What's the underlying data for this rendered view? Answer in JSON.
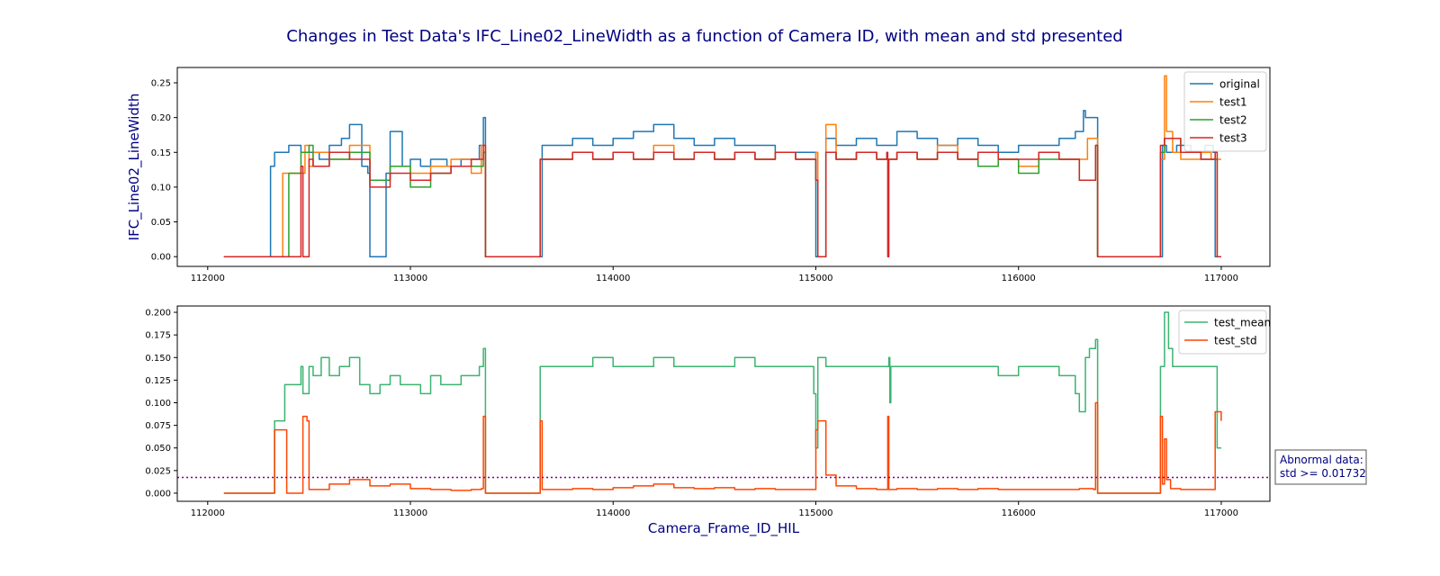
{
  "chart_data": [
    {
      "type": "line",
      "title": "Changes in Test Data's IFC_Line02_LineWidth as a function of Camera ID, with mean and std presented",
      "ylabel": "IFC_Line02_LineWidth",
      "xlabel": "",
      "xlim": [
        111850,
        117240
      ],
      "ylim": [
        -0.014,
        0.272
      ],
      "xticks": [
        112000,
        113000,
        114000,
        115000,
        116000,
        117000
      ],
      "xtick_labels": [
        "112000",
        "113000",
        "114000",
        "115000",
        "116000",
        "117000"
      ],
      "yticks": [
        0.0,
        0.05,
        0.1,
        0.15,
        0.2,
        0.25
      ],
      "ytick_labels": [
        "0.00",
        "0.05",
        "0.10",
        "0.15",
        "0.20",
        "0.25"
      ],
      "legend_position": "top-right",
      "series": [
        {
          "name": "original",
          "color": "#1f77b4",
          "x": [
            112080,
            112300,
            112310,
            112330,
            112400,
            112460,
            112550,
            112600,
            112660,
            112700,
            112760,
            112790,
            112800,
            112830,
            112880,
            112900,
            112960,
            113000,
            113050,
            113100,
            113180,
            113250,
            113300,
            113340,
            113360,
            113370,
            113630,
            113650,
            113700,
            113800,
            113900,
            114000,
            114100,
            114200,
            114300,
            114400,
            114500,
            114600,
            114700,
            114800,
            114900,
            114990,
            115000,
            115050,
            115100,
            115200,
            115300,
            115400,
            115500,
            115600,
            115700,
            115800,
            115900,
            116000,
            116100,
            116200,
            116280,
            116320,
            116330,
            116380,
            116390,
            116700,
            116710,
            116730,
            116780,
            116850,
            116920,
            116960,
            116970,
            116990,
            117000
          ],
          "y": [
            0,
            0,
            0.13,
            0.15,
            0.16,
            0.15,
            0.14,
            0.16,
            0.17,
            0.19,
            0.13,
            0.12,
            0,
            0,
            0.12,
            0.18,
            0.13,
            0.14,
            0.13,
            0.14,
            0.13,
            0.14,
            0.14,
            0.16,
            0.2,
            0,
            0,
            0.16,
            0.16,
            0.17,
            0.16,
            0.17,
            0.18,
            0.19,
            0.17,
            0.16,
            0.17,
            0.16,
            0.16,
            0.15,
            0.15,
            0.15,
            0,
            0.17,
            0.16,
            0.17,
            0.16,
            0.18,
            0.17,
            0.16,
            0.17,
            0.16,
            0.15,
            0.16,
            0.16,
            0.17,
            0.18,
            0.21,
            0.2,
            0.2,
            0,
            0,
            0.16,
            0.15,
            0.16,
            0.15,
            0.16,
            0.15,
            0,
            0,
            0
          ]
        },
        {
          "name": "test1",
          "color": "#ff7f0e",
          "x": [
            112080,
            112360,
            112370,
            112440,
            112480,
            112500,
            112520,
            112600,
            112700,
            112800,
            112900,
            113000,
            113100,
            113200,
            113300,
            113350,
            113370,
            113630,
            113640,
            113700,
            113800,
            113900,
            114000,
            114100,
            114200,
            114300,
            114400,
            114500,
            114600,
            114700,
            114800,
            114900,
            115000,
            115010,
            115050,
            115100,
            115200,
            115300,
            115400,
            115500,
            115600,
            115700,
            115800,
            115900,
            116000,
            116100,
            116200,
            116300,
            116340,
            116380,
            116390,
            116690,
            116700,
            116720,
            116730,
            116760,
            116800,
            116900,
            116950,
            116990,
            117000
          ],
          "y": [
            0,
            0,
            0.12,
            0.12,
            0.16,
            0.13,
            0.15,
            0.14,
            0.16,
            0.11,
            0.13,
            0.12,
            0.13,
            0.14,
            0.12,
            0.16,
            0,
            0,
            0.14,
            0.14,
            0.15,
            0.14,
            0.15,
            0.14,
            0.16,
            0.14,
            0.15,
            0.14,
            0.15,
            0.14,
            0.15,
            0.14,
            0.15,
            0,
            0.19,
            0.14,
            0.15,
            0.14,
            0.15,
            0.14,
            0.16,
            0.14,
            0.15,
            0.14,
            0.13,
            0.15,
            0.14,
            0.14,
            0.17,
            0.17,
            0,
            0,
            0.14,
            0.26,
            0.18,
            0.15,
            0.14,
            0.15,
            0.14,
            0.14,
            0.14
          ]
        },
        {
          "name": "test2",
          "color": "#2ca02c",
          "x": [
            112080,
            112330,
            112400,
            112460,
            112500,
            112520,
            112600,
            112700,
            112800,
            112900,
            113000,
            113100,
            113200,
            113300,
            113360,
            113370,
            113630,
            113640,
            113700,
            113800,
            113900,
            114000,
            114100,
            114200,
            114300,
            114400,
            114500,
            114600,
            114700,
            114800,
            114900,
            115000,
            115010,
            115050,
            115100,
            115200,
            115300,
            115400,
            115500,
            115600,
            115700,
            115800,
            115900,
            116000,
            116100,
            116200,
            116300,
            116380,
            116390,
            116690,
            116700,
            116720,
            116800,
            116900,
            116970,
            116980,
            117000
          ],
          "y": [
            0,
            0,
            0.12,
            0.15,
            0.16,
            0.13,
            0.14,
            0.15,
            0.11,
            0.13,
            0.1,
            0.12,
            0.13,
            0.13,
            0.15,
            0,
            0,
            0.14,
            0.14,
            0.15,
            0.14,
            0.15,
            0.14,
            0.15,
            0.14,
            0.15,
            0.14,
            0.15,
            0.14,
            0.15,
            0.14,
            0.11,
            0,
            0.15,
            0.14,
            0.15,
            0.14,
            0.15,
            0.14,
            0.15,
            0.14,
            0.13,
            0.14,
            0.12,
            0.14,
            0.14,
            0.11,
            0.16,
            0,
            0,
            0.15,
            0.17,
            0.15,
            0.14,
            0.14,
            0,
            0
          ]
        },
        {
          "name": "test3",
          "color": "#d62728",
          "x": [
            112080,
            112330,
            112460,
            112470,
            112500,
            112520,
            112600,
            112700,
            112800,
            112900,
            113000,
            113100,
            113200,
            113300,
            113360,
            113370,
            113630,
            113640,
            113700,
            113800,
            113900,
            114000,
            114100,
            114200,
            114300,
            114400,
            114500,
            114600,
            114700,
            114800,
            114900,
            115000,
            115010,
            115050,
            115100,
            115200,
            115300,
            115350,
            115355,
            115360,
            115400,
            115500,
            115600,
            115700,
            115800,
            115900,
            116000,
            116100,
            116200,
            116300,
            116380,
            116390,
            116690,
            116700,
            116720,
            116800,
            116900,
            116970,
            116980,
            117000
          ],
          "y": [
            0,
            0,
            0.13,
            0,
            0.14,
            0.13,
            0.15,
            0.14,
            0.1,
            0.12,
            0.11,
            0.12,
            0.13,
            0.14,
            0.16,
            0,
            0,
            0.14,
            0.14,
            0.15,
            0.14,
            0.15,
            0.14,
            0.15,
            0.14,
            0.15,
            0.14,
            0.15,
            0.14,
            0.15,
            0.14,
            0.11,
            0,
            0.15,
            0.14,
            0.15,
            0.14,
            0.15,
            0,
            0.14,
            0.15,
            0.14,
            0.15,
            0.14,
            0.15,
            0.14,
            0.14,
            0.15,
            0.14,
            0.11,
            0.16,
            0,
            0,
            0.16,
            0.17,
            0.15,
            0.14,
            0.15,
            0,
            0
          ]
        }
      ]
    },
    {
      "type": "line",
      "title": "",
      "xlabel": "Camera_Frame_ID_HIL",
      "ylabel": "",
      "xlim": [
        111850,
        117240
      ],
      "ylim": [
        -0.009,
        0.207
      ],
      "xticks": [
        112000,
        113000,
        114000,
        115000,
        116000,
        117000
      ],
      "xtick_labels": [
        "112000",
        "113000",
        "114000",
        "115000",
        "116000",
        "117000"
      ],
      "yticks": [
        0.0,
        0.025,
        0.05,
        0.075,
        0.1,
        0.125,
        0.15,
        0.175,
        0.2
      ],
      "ytick_labels": [
        "0.000",
        "0.025",
        "0.050",
        "0.075",
        "0.100",
        "0.125",
        "0.150",
        "0.175",
        "0.200"
      ],
      "legend_position": "top-right",
      "threshold": {
        "value": 0.01732,
        "color": "#800080",
        "label": "Abnormal data:\nstd >= 0.01732"
      },
      "series": [
        {
          "name": "test_mean",
          "color": "#3cb371",
          "x": [
            112080,
            112320,
            112330,
            112370,
            112380,
            112440,
            112460,
            112470,
            112500,
            112520,
            112560,
            112600,
            112650,
            112700,
            112750,
            112800,
            112850,
            112900,
            112950,
            113000,
            113050,
            113100,
            113150,
            113200,
            113250,
            113300,
            113340,
            113360,
            113370,
            113630,
            113640,
            113700,
            113800,
            113900,
            114000,
            114100,
            114200,
            114300,
            114400,
            114500,
            114600,
            114700,
            114800,
            114900,
            114990,
            115000,
            115010,
            115050,
            115100,
            115200,
            115300,
            115360,
            115365,
            115370,
            115400,
            115500,
            115600,
            115700,
            115800,
            115900,
            116000,
            116100,
            116200,
            116280,
            116300,
            116330,
            116350,
            116370,
            116380,
            116390,
            116690,
            116700,
            116720,
            116740,
            116760,
            116800,
            116850,
            116900,
            116950,
            116970,
            116980,
            117000
          ],
          "y": [
            0,
            0,
            0.08,
            0.08,
            0.12,
            0.12,
            0.14,
            0.11,
            0.14,
            0.13,
            0.15,
            0.13,
            0.14,
            0.15,
            0.12,
            0.11,
            0.12,
            0.13,
            0.12,
            0.12,
            0.11,
            0.13,
            0.12,
            0.12,
            0.13,
            0.13,
            0.14,
            0.16,
            0,
            0,
            0.14,
            0.14,
            0.14,
            0.15,
            0.14,
            0.14,
            0.15,
            0.14,
            0.14,
            0.14,
            0.15,
            0.14,
            0.14,
            0.14,
            0.11,
            0.05,
            0.15,
            0.14,
            0.14,
            0.14,
            0.14,
            0.15,
            0.1,
            0.14,
            0.14,
            0.14,
            0.14,
            0.14,
            0.14,
            0.13,
            0.14,
            0.14,
            0.13,
            0.11,
            0.09,
            0.15,
            0.16,
            0.16,
            0.17,
            0,
            0,
            0.14,
            0.2,
            0.16,
            0.14,
            0.14,
            0.14,
            0.14,
            0.14,
            0.14,
            0.05,
            0.05
          ]
        },
        {
          "name": "test_std",
          "color": "#ff4500",
          "x": [
            112080,
            112320,
            112330,
            112380,
            112390,
            112460,
            112470,
            112490,
            112500,
            112600,
            112700,
            112800,
            112900,
            113000,
            113100,
            113200,
            113300,
            113350,
            113360,
            113370,
            113630,
            113640,
            113650,
            113700,
            113800,
            113900,
            114000,
            114100,
            114200,
            114300,
            114400,
            114500,
            114600,
            114700,
            114800,
            114900,
            114990,
            115000,
            115010,
            115050,
            115100,
            115200,
            115300,
            115350,
            115355,
            115360,
            115400,
            115500,
            115600,
            115700,
            115800,
            115900,
            116000,
            116100,
            116200,
            116300,
            116370,
            116380,
            116390,
            116690,
            116700,
            116710,
            116720,
            116730,
            116750,
            116770,
            116800,
            116900,
            116960,
            116970,
            116990,
            117000
          ],
          "y": [
            0,
            0,
            0.07,
            0.07,
            0,
            0,
            0.085,
            0.08,
            0.004,
            0.01,
            0.015,
            0.008,
            0.01,
            0.005,
            0.004,
            0.003,
            0.004,
            0.005,
            0.085,
            0,
            0,
            0.08,
            0.004,
            0.004,
            0.005,
            0.004,
            0.006,
            0.008,
            0.01,
            0.006,
            0.005,
            0.006,
            0.004,
            0.005,
            0.004,
            0.004,
            0.004,
            0.07,
            0.08,
            0.02,
            0.008,
            0.005,
            0.004,
            0.004,
            0.085,
            0.004,
            0.005,
            0.004,
            0.005,
            0.004,
            0.005,
            0.004,
            0.004,
            0.004,
            0.004,
            0.005,
            0.004,
            0.1,
            0,
            0,
            0.085,
            0.01,
            0.06,
            0.015,
            0.005,
            0.005,
            0.004,
            0.004,
            0.004,
            0.09,
            0.09,
            0.08
          ]
        }
      ]
    }
  ]
}
